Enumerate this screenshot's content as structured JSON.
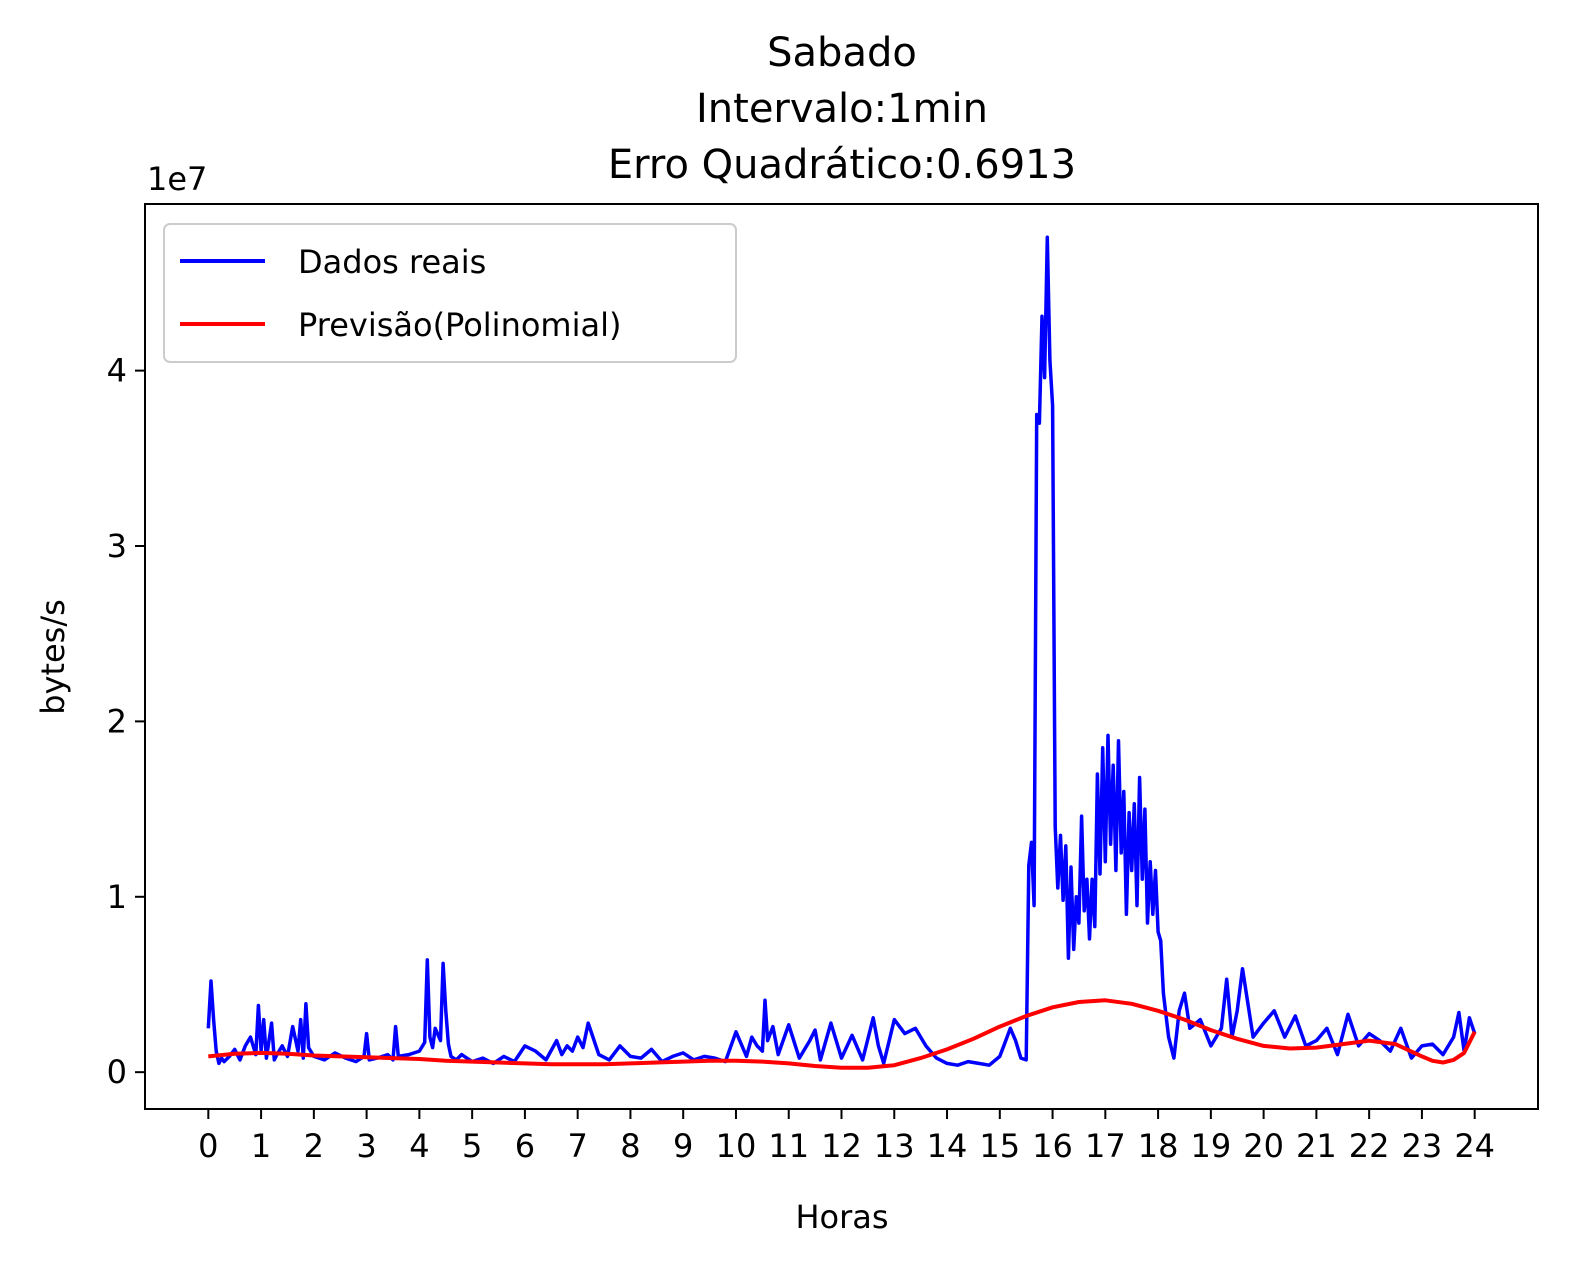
{
  "chart_data": {
    "type": "line",
    "title_lines": [
      "Sabado",
      "Intervalo:1min",
      "Erro Quadrático:0.6913"
    ],
    "xlabel": "Horas",
    "ylabel": "bytes/s",
    "y_offset_label": "1e7",
    "xlim": [
      -1.2,
      25.2
    ],
    "ylim": [
      -2100000,
      49500000
    ],
    "x_ticks": [
      0,
      1,
      2,
      3,
      4,
      5,
      6,
      7,
      8,
      9,
      10,
      11,
      12,
      13,
      14,
      15,
      16,
      17,
      18,
      19,
      20,
      21,
      22,
      23,
      24
    ],
    "x_tick_labels": [
      "0",
      "1",
      "2",
      "3",
      "4",
      "5",
      "6",
      "7",
      "8",
      "9",
      "10",
      "11",
      "12",
      "13",
      "14",
      "15",
      "16",
      "17",
      "18",
      "19",
      "20",
      "21",
      "22",
      "23",
      "24"
    ],
    "y_ticks": [
      0,
      10000000,
      20000000,
      30000000,
      40000000
    ],
    "y_tick_labels": [
      "0",
      "1",
      "2",
      "3",
      "4"
    ],
    "legend_position": "upper-left",
    "series": [
      {
        "name": "Dados reais",
        "color": "#0000ff",
        "x": [
          0,
          0.05,
          0.1,
          0.15,
          0.2,
          0.25,
          0.3,
          0.4,
          0.5,
          0.6,
          0.7,
          0.8,
          0.9,
          0.95,
          1.0,
          1.05,
          1.1,
          1.2,
          1.25,
          1.3,
          1.4,
          1.5,
          1.6,
          1.7,
          1.75,
          1.8,
          1.85,
          1.9,
          2.0,
          2.2,
          2.4,
          2.6,
          2.8,
          2.95,
          3.0,
          3.05,
          3.2,
          3.4,
          3.5,
          3.55,
          3.6,
          3.8,
          4.0,
          4.1,
          4.15,
          4.2,
          4.25,
          4.3,
          4.4,
          4.45,
          4.5,
          4.55,
          4.6,
          4.7,
          4.8,
          5.0,
          5.2,
          5.4,
          5.6,
          5.8,
          6.0,
          6.2,
          6.4,
          6.6,
          6.7,
          6.8,
          6.9,
          7.0,
          7.1,
          7.2,
          7.4,
          7.6,
          7.8,
          8.0,
          8.2,
          8.4,
          8.6,
          8.8,
          9.0,
          9.2,
          9.4,
          9.6,
          9.8,
          10.0,
          10.2,
          10.3,
          10.4,
          10.5,
          10.55,
          10.6,
          10.7,
          10.8,
          11.0,
          11.2,
          11.4,
          11.5,
          11.6,
          11.8,
          12.0,
          12.2,
          12.4,
          12.6,
          12.7,
          12.8,
          13.0,
          13.2,
          13.4,
          13.6,
          13.8,
          14.0,
          14.2,
          14.4,
          14.6,
          14.8,
          15.0,
          15.1,
          15.2,
          15.3,
          15.4,
          15.5,
          15.55,
          15.6,
          15.65,
          15.7,
          15.75,
          15.8,
          15.85,
          15.9,
          15.95,
          16.0,
          16.05,
          16.1,
          16.15,
          16.2,
          16.25,
          16.3,
          16.35,
          16.4,
          16.45,
          16.5,
          16.55,
          16.6,
          16.65,
          16.7,
          16.75,
          16.8,
          16.85,
          16.9,
          16.95,
          17.0,
          17.05,
          17.1,
          17.15,
          17.2,
          17.25,
          17.3,
          17.35,
          17.4,
          17.45,
          17.5,
          17.55,
          17.6,
          17.65,
          17.7,
          17.75,
          17.8,
          17.85,
          17.9,
          17.95,
          18.0,
          18.05,
          18.1,
          18.2,
          18.3,
          18.4,
          18.5,
          18.6,
          18.8,
          19.0,
          19.2,
          19.3,
          19.4,
          19.5,
          19.6,
          19.8,
          20.0,
          20.2,
          20.4,
          20.6,
          20.8,
          21.0,
          21.2,
          21.4,
          21.6,
          21.8,
          22.0,
          22.2,
          22.4,
          22.6,
          22.8,
          23.0,
          23.2,
          23.4,
          23.6,
          23.7,
          23.8,
          23.9,
          24.0
        ],
        "y": [
          2500000,
          5200000,
          3000000,
          1200000,
          500000,
          800000,
          600000,
          900000,
          1300000,
          700000,
          1500000,
          2000000,
          1000000,
          3800000,
          1200000,
          3000000,
          800000,
          2800000,
          700000,
          1000000,
          1500000,
          900000,
          2600000,
          1200000,
          3000000,
          800000,
          3900000,
          1400000,
          900000,
          700000,
          1100000,
          800000,
          600000,
          900000,
          2200000,
          700000,
          800000,
          1000000,
          700000,
          2600000,
          900000,
          1000000,
          1200000,
          1700000,
          6400000,
          2000000,
          1400000,
          2500000,
          1800000,
          6200000,
          3500000,
          1600000,
          900000,
          700000,
          1000000,
          600000,
          800000,
          500000,
          900000,
          600000,
          1500000,
          1200000,
          700000,
          1800000,
          1000000,
          1500000,
          1200000,
          2000000,
          1400000,
          2800000,
          1000000,
          700000,
          1500000,
          900000,
          800000,
          1300000,
          600000,
          900000,
          1100000,
          700000,
          900000,
          800000,
          600000,
          2300000,
          900000,
          2000000,
          1500000,
          1200000,
          4100000,
          1800000,
          2600000,
          1000000,
          2700000,
          800000,
          1800000,
          2400000,
          700000,
          2800000,
          800000,
          2100000,
          700000,
          3100000,
          1500000,
          500000,
          3000000,
          2200000,
          2500000,
          1500000,
          800000,
          500000,
          400000,
          600000,
          500000,
          400000,
          900000,
          1700000,
          2500000,
          1800000,
          800000,
          700000,
          11800000,
          13100000,
          9500000,
          37500000,
          37000000,
          43100000,
          39600000,
          47600000,
          40600000,
          38000000,
          14000000,
          10500000,
          13500000,
          9800000,
          12900000,
          6500000,
          11700000,
          7000000,
          10000000,
          8500000,
          14600000,
          9200000,
          11000000,
          7600000,
          11000000,
          8300000,
          17000000,
          11300000,
          18500000,
          12000000,
          19200000,
          13000000,
          17500000,
          11500000,
          18900000,
          12500000,
          16000000,
          9000000,
          14800000,
          11500000,
          15300000,
          9500000,
          16800000,
          11000000,
          15000000,
          8500000,
          12000000,
          9000000,
          11500000,
          8000000,
          7500000,
          4500000,
          2000000,
          800000,
          3500000,
          4500000,
          2500000,
          3000000,
          1500000,
          2500000,
          5300000,
          2000000,
          3500000,
          5900000,
          2000000,
          2800000,
          3500000,
          2000000,
          3200000,
          1500000,
          1800000,
          2500000,
          1000000,
          3300000,
          1500000,
          2200000,
          1800000,
          1200000,
          2500000,
          800000,
          1500000,
          1600000,
          1000000,
          2000000,
          3400000,
          1200000,
          3100000,
          2200000
        ]
      },
      {
        "name": "Previsão(Polinomial)",
        "color": "#ff0000",
        "x": [
          0,
          0.5,
          1,
          1.5,
          2,
          2.5,
          3,
          3.5,
          4,
          4.5,
          5,
          5.5,
          6,
          6.5,
          7,
          7.5,
          8,
          8.5,
          9,
          9.5,
          10,
          10.5,
          11,
          11.5,
          12,
          12.5,
          13,
          13.5,
          14,
          14.5,
          15,
          15.5,
          16,
          16.5,
          17,
          17.5,
          18,
          18.5,
          19,
          19.5,
          20,
          20.5,
          21,
          21.5,
          22,
          22.5,
          23,
          23.2,
          23.4,
          23.6,
          23.8,
          24
        ],
        "y": [
          900000,
          1050000,
          1100000,
          1050000,
          950000,
          900000,
          850000,
          800000,
          750000,
          650000,
          600000,
          550000,
          500000,
          450000,
          450000,
          450000,
          500000,
          550000,
          600000,
          650000,
          650000,
          600000,
          500000,
          350000,
          250000,
          250000,
          400000,
          800000,
          1300000,
          1900000,
          2600000,
          3200000,
          3700000,
          4000000,
          4100000,
          3900000,
          3500000,
          3000000,
          2400000,
          1900000,
          1500000,
          1350000,
          1400000,
          1600000,
          1800000,
          1600000,
          900000,
          650000,
          550000,
          700000,
          1100000,
          2300000
        ]
      }
    ]
  }
}
